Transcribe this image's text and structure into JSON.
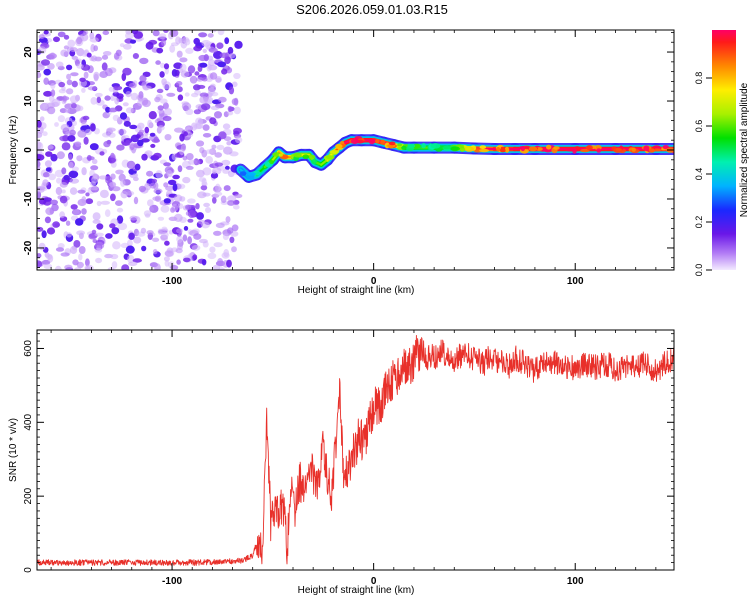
{
  "title": "S206.2026.059.01.03.R15",
  "colors": {
    "snr_line": "#e8302a",
    "scatter": "#7a2cf0",
    "axis": "#000000",
    "background": "#ffffff"
  },
  "chart_data": [
    {
      "type": "heatmap",
      "title": "S206.2026.059.01.03.R15",
      "xlabel": "Height of straight line (km)",
      "ylabel": "Frequency (Hz)",
      "xlim": [
        -167,
        149
      ],
      "ylim": [
        -24.5,
        24.5
      ],
      "x_ticks": [
        -100,
        0,
        100
      ],
      "x_tick_labels": [
        "-100",
        "0",
        "100"
      ],
      "y_ticks": [
        -20,
        -10,
        0,
        10,
        20
      ],
      "y_tick_labels": [
        "-20",
        "-10",
        "0",
        "10",
        "20"
      ],
      "noise_region_x": [
        -167,
        -67
      ],
      "frequency_track": {
        "x": [
          -66,
          -62,
          -58,
          -54,
          -50,
          -47,
          -44,
          -40,
          -36,
          -32,
          -29,
          -26,
          -23,
          -20,
          -17,
          -14,
          -11,
          -6,
          0,
          5,
          10,
          15,
          20,
          30,
          40,
          50,
          60,
          70,
          80,
          100,
          120,
          140,
          149
        ],
        "y": [
          -4,
          -5.5,
          -5,
          -3.5,
          -2,
          -0.5,
          -1.5,
          -1.5,
          -1,
          -1,
          -2.5,
          -3,
          -2,
          -0.5,
          0.5,
          1.5,
          2,
          2,
          2,
          1.5,
          1,
          0.5,
          0.5,
          0.5,
          0.5,
          0.3,
          0.2,
          0.2,
          0.2,
          0.2,
          0.2,
          0.2,
          0.2
        ],
        "amplitude": [
          0.3,
          0.35,
          0.45,
          0.5,
          0.55,
          0.6,
          0.85,
          0.6,
          0.6,
          0.65,
          0.55,
          0.5,
          0.6,
          0.7,
          0.85,
          0.95,
          0.95,
          0.95,
          0.95,
          0.9,
          0.9,
          0.55,
          0.55,
          0.5,
          0.55,
          0.85,
          0.9,
          0.95,
          0.95,
          0.95,
          0.95,
          0.95,
          0.95
        ]
      },
      "colorbar": {
        "label": "Normalized spectral amplitude",
        "range": [
          0,
          1
        ],
        "ticks": [
          0,
          0.2,
          0.4,
          0.6,
          0.8
        ],
        "tick_labels": [
          "0.0",
          "0.2",
          "0.4",
          "0.6",
          "0.8"
        ]
      }
    },
    {
      "type": "line",
      "xlabel": "Height of straight line (km)",
      "ylabel": "SNR (10 * v/v)",
      "xlim": [
        -167,
        149
      ],
      "ylim": [
        0,
        650
      ],
      "x_ticks": [
        -100,
        0,
        100
      ],
      "x_tick_labels": [
        "-100",
        "0",
        "100"
      ],
      "y_ticks": [
        0,
        200,
        400,
        600
      ],
      "y_tick_labels": [
        "0",
        "200",
        "400",
        "600"
      ],
      "series": [
        {
          "name": "SNR",
          "x": [
            -167,
            -150,
            -130,
            -110,
            -90,
            -75,
            -65,
            -60,
            -57,
            -55,
            -53,
            -51,
            -49,
            -47,
            -45,
            -43,
            -41,
            -39,
            -37,
            -35,
            -33,
            -31,
            -29,
            -27,
            -25,
            -23,
            -21,
            -19,
            -17,
            -15,
            -13,
            -11,
            -9,
            -7,
            -5,
            -3,
            -1,
            1,
            3,
            5,
            7,
            9,
            11,
            13,
            15,
            17,
            19,
            21,
            23,
            25,
            28,
            31,
            34,
            37,
            40,
            43,
            46,
            49,
            52,
            55,
            58,
            61,
            64,
            67,
            70,
            75,
            80,
            85,
            90,
            95,
            100,
            105,
            110,
            115,
            120,
            125,
            130,
            135,
            140,
            145,
            149
          ],
          "values": [
            20,
            20,
            20,
            20,
            20,
            22,
            25,
            40,
            90,
            60,
            430,
            120,
            180,
            140,
            190,
            60,
            210,
            170,
            240,
            230,
            240,
            300,
            210,
            260,
            350,
            250,
            200,
            320,
            495,
            250,
            260,
            310,
            320,
            380,
            330,
            380,
            420,
            450,
            440,
            470,
            500,
            510,
            520,
            540,
            560,
            550,
            560,
            580,
            590,
            570,
            575,
            580,
            600,
            570,
            560,
            580,
            590,
            575,
            570,
            560,
            580,
            565,
            560,
            550,
            575,
            560,
            540,
            560,
            565,
            555,
            545,
            555,
            550,
            560,
            545,
            555,
            550,
            560,
            540,
            560,
            570
          ]
        }
      ]
    }
  ]
}
